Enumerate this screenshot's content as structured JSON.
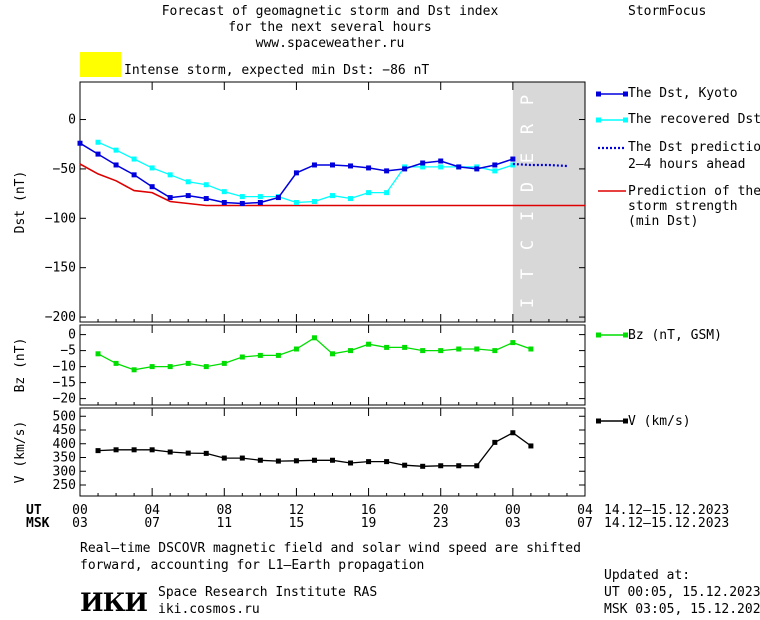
{
  "header": {
    "title_lines": [
      "Forecast of geomagnetic storm and Dst index",
      "for the next several hours",
      "www.spaceweather.ru"
    ],
    "brand": "StormFocus",
    "storm_label": "Intense storm, expected min Dst: −86 nT",
    "storm_color": "#ffff00"
  },
  "legend": {
    "dst_kyoto": "The Dst, Kyoto",
    "dst_recovered": "The recovered Dst",
    "dst_prediction_1": "The Dst prediction",
    "dst_prediction_2": "2–4 hours ahead",
    "storm_pred_1": "Prediction of the",
    "storm_pred_2": "storm strength",
    "storm_pred_3": "(min Dst)",
    "bz": "Bz (nT, GSM)",
    "v": "V (km/s)"
  },
  "axes": {
    "ut_label": "UT",
    "msk_label": "MSK",
    "ut_ticks": [
      "00",
      "04",
      "08",
      "12",
      "16",
      "20",
      "00",
      "04"
    ],
    "msk_ticks": [
      "03",
      "07",
      "11",
      "15",
      "19",
      "23",
      "03",
      "07"
    ],
    "date_range_ut": "14.12–15.12.2023",
    "date_range_msk": "14.12–15.12.2023",
    "prediction_text": "PREDICTION"
  },
  "footer": {
    "note_1": "Real–time DSCOVR magnetic field and solar wind speed are shifted",
    "note_2": "forward, accounting for L1–Earth propagation",
    "institute": "Space Research Institute RAS",
    "site": "iki.cosmos.ru",
    "logo_text": "ИКИ",
    "updated_label": "Updated at:",
    "updated_ut": "UT   00:05, 15.12.2023",
    "updated_msk": "MSK 03:05, 15.12.2023"
  },
  "chart_data": {
    "type": "line",
    "x_unit": "hours UT from 00 on 14.12.2023",
    "xlim": [
      0,
      28
    ],
    "prediction_window": [
      24,
      28
    ],
    "colors": {
      "kyoto": "#0000dd",
      "recovered": "#00ffff",
      "prediction": "#0000dd",
      "storm": "#dd0000",
      "bz": "#00dd00",
      "v": "#000000",
      "shade": "#d8d8d8"
    },
    "dst": {
      "ylabel": "Dst (nT)",
      "ylim": [
        -205,
        38
      ],
      "yticks": [
        0,
        -50,
        -100,
        -150,
        -200
      ],
      "kyoto": {
        "x": [
          0,
          1,
          2,
          3,
          4,
          5,
          6,
          7,
          8,
          9,
          10,
          11,
          12,
          13,
          14,
          15,
          16,
          17,
          18,
          19,
          20,
          21,
          22,
          23,
          24
        ],
        "y": [
          -24,
          -35,
          -46,
          -56,
          -68,
          -79,
          -77,
          -80,
          -84,
          -85,
          -84,
          -79,
          -54,
          -46,
          -46,
          -47,
          -49,
          -52,
          -50,
          -44,
          -42,
          -48,
          -50,
          -46,
          -40
        ]
      },
      "recovered": {
        "x": [
          1,
          2,
          3,
          4,
          5,
          6,
          7,
          8,
          9,
          10,
          11,
          12,
          13,
          14,
          15,
          16,
          17,
          18,
          19,
          20,
          21,
          22,
          23,
          24
        ],
        "y": [
          -23,
          -31,
          -40,
          -49,
          -56,
          -63,
          -66,
          -73,
          -78,
          -78,
          -78,
          -84,
          -83,
          -77,
          -80,
          -74,
          -74,
          -48,
          -48,
          -48,
          -48,
          -48,
          -52,
          -46
        ]
      },
      "prediction": {
        "x": [
          24,
          25,
          26,
          27
        ],
        "y": [
          -45,
          -46,
          -46,
          -47
        ]
      },
      "storm_strength": {
        "x": [
          0,
          1,
          2,
          3,
          4,
          5,
          6,
          7,
          8,
          9,
          10,
          11,
          12,
          13,
          14,
          15,
          16,
          17,
          18,
          19,
          20,
          21,
          22,
          23,
          24,
          25,
          26,
          27,
          28
        ],
        "y": [
          -45,
          -55,
          -62,
          -72,
          -74,
          -83,
          -85,
          -87,
          -87,
          -87,
          -87,
          -87,
          -87,
          -87,
          -87,
          -87,
          -87,
          -87,
          -87,
          -87,
          -87,
          -87,
          -87,
          -87,
          -87,
          -87,
          -87,
          -87,
          -87
        ]
      }
    },
    "bz": {
      "ylabel": "Bz (nT)",
      "ylim": [
        -22,
        3
      ],
      "yticks": [
        0,
        -5,
        -10,
        -15,
        -20
      ],
      "x": [
        1,
        2,
        3,
        4,
        5,
        6,
        7,
        8,
        9,
        10,
        11,
        12,
        13,
        14,
        15,
        16,
        17,
        18,
        19,
        20,
        21,
        22,
        23,
        24,
        25
      ],
      "y": [
        -6,
        -9,
        -11,
        -10,
        -10,
        -9,
        -10,
        -9,
        -7,
        -6.5,
        -6.5,
        -4.5,
        -1,
        -6,
        -5,
        -3,
        -4,
        -4,
        -5,
        -5,
        -4.5,
        -4.5,
        -5,
        -2.5,
        -4.5
      ]
    },
    "v": {
      "ylabel": "V (km/s)",
      "ylim": [
        210,
        530
      ],
      "yticks": [
        250,
        300,
        350,
        400,
        450,
        500
      ],
      "x": [
        1,
        2,
        3,
        4,
        5,
        6,
        7,
        8,
        9,
        10,
        11,
        12,
        13,
        14,
        15,
        16,
        17,
        18,
        19,
        20,
        21,
        22,
        23,
        24,
        25
      ],
      "y": [
        375,
        378,
        378,
        378,
        370,
        366,
        365,
        348,
        348,
        340,
        337,
        338,
        340,
        340,
        330,
        335,
        335,
        322,
        318,
        320,
        320,
        320,
        405,
        440,
        392
      ]
    }
  }
}
